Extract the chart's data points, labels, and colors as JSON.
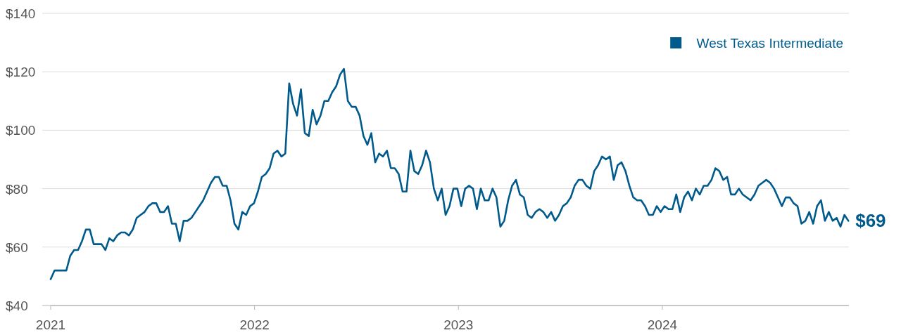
{
  "chart_data": {
    "type": "line",
    "x": [
      "2021-01-01",
      "2021-01-08",
      "2021-01-15",
      "2021-01-22",
      "2021-01-29",
      "2021-02-05",
      "2021-02-12",
      "2021-02-19",
      "2021-02-26",
      "2021-03-05",
      "2021-03-12",
      "2021-03-19",
      "2021-03-26",
      "2021-04-02",
      "2021-04-09",
      "2021-04-16",
      "2021-04-23",
      "2021-04-30",
      "2021-05-07",
      "2021-05-14",
      "2021-05-21",
      "2021-05-28",
      "2021-06-04",
      "2021-06-11",
      "2021-06-18",
      "2021-06-25",
      "2021-07-02",
      "2021-07-09",
      "2021-07-16",
      "2021-07-23",
      "2021-07-30",
      "2021-08-06",
      "2021-08-13",
      "2021-08-20",
      "2021-08-27",
      "2021-09-03",
      "2021-09-10",
      "2021-09-17",
      "2021-09-24",
      "2021-10-01",
      "2021-10-08",
      "2021-10-15",
      "2021-10-22",
      "2021-10-29",
      "2021-11-05",
      "2021-11-12",
      "2021-11-19",
      "2021-11-26",
      "2021-12-03",
      "2021-12-10",
      "2021-12-17",
      "2021-12-24",
      "2021-12-31",
      "2022-01-07",
      "2022-01-14",
      "2022-01-21",
      "2022-01-28",
      "2022-02-04",
      "2022-02-11",
      "2022-02-18",
      "2022-02-25",
      "2022-03-04",
      "2022-03-11",
      "2022-03-18",
      "2022-03-25",
      "2022-04-01",
      "2022-04-08",
      "2022-04-15",
      "2022-04-22",
      "2022-04-29",
      "2022-05-06",
      "2022-05-13",
      "2022-05-20",
      "2022-05-27",
      "2022-06-03",
      "2022-06-10",
      "2022-06-17",
      "2022-06-24",
      "2022-07-01",
      "2022-07-08",
      "2022-07-15",
      "2022-07-22",
      "2022-07-29",
      "2022-08-05",
      "2022-08-12",
      "2022-08-19",
      "2022-08-26",
      "2022-09-02",
      "2022-09-09",
      "2022-09-16",
      "2022-09-23",
      "2022-09-30",
      "2022-10-07",
      "2022-10-14",
      "2022-10-21",
      "2022-10-28",
      "2022-11-04",
      "2022-11-11",
      "2022-11-18",
      "2022-11-25",
      "2022-12-02",
      "2022-12-09",
      "2022-12-16",
      "2022-12-23",
      "2022-12-30",
      "2023-01-06",
      "2023-01-13",
      "2023-01-20",
      "2023-01-27",
      "2023-02-03",
      "2023-02-10",
      "2023-02-17",
      "2023-02-24",
      "2023-03-03",
      "2023-03-10",
      "2023-03-17",
      "2023-03-24",
      "2023-03-31",
      "2023-04-07",
      "2023-04-14",
      "2023-04-21",
      "2023-04-28",
      "2023-05-05",
      "2023-05-12",
      "2023-05-19",
      "2023-05-26",
      "2023-06-02",
      "2023-06-09",
      "2023-06-16",
      "2023-06-23",
      "2023-06-30",
      "2023-07-07",
      "2023-07-14",
      "2023-07-21",
      "2023-07-28",
      "2023-08-04",
      "2023-08-11",
      "2023-08-18",
      "2023-08-25",
      "2023-09-01",
      "2023-09-08",
      "2023-09-15",
      "2023-09-22",
      "2023-09-29",
      "2023-10-06",
      "2023-10-13",
      "2023-10-20",
      "2023-10-27",
      "2023-11-03",
      "2023-11-10",
      "2023-11-17",
      "2023-11-24",
      "2023-12-01",
      "2023-12-08",
      "2023-12-15",
      "2023-12-22",
      "2023-12-29",
      "2024-01-05",
      "2024-01-12",
      "2024-01-19",
      "2024-01-26",
      "2024-02-02",
      "2024-02-09",
      "2024-02-16",
      "2024-02-23",
      "2024-03-01",
      "2024-03-08",
      "2024-03-15",
      "2024-03-22",
      "2024-03-29",
      "2024-04-05",
      "2024-04-12",
      "2024-04-19",
      "2024-04-26",
      "2024-05-03",
      "2024-05-10",
      "2024-05-17",
      "2024-05-24",
      "2024-05-31",
      "2024-06-07",
      "2024-06-14",
      "2024-06-21",
      "2024-06-28",
      "2024-07-05",
      "2024-07-12",
      "2024-07-19",
      "2024-07-26",
      "2024-08-02",
      "2024-08-09",
      "2024-08-16",
      "2024-08-23",
      "2024-08-30",
      "2024-09-06",
      "2024-09-13",
      "2024-09-20",
      "2024-09-27",
      "2024-10-04",
      "2024-10-11",
      "2024-10-18",
      "2024-10-25",
      "2024-11-01",
      "2024-11-08",
      "2024-11-15",
      "2024-11-22",
      "2024-11-29"
    ],
    "series": [
      {
        "name": "West Texas Intermediate",
        "color": "#005a8c",
        "values": [
          49,
          52,
          52,
          52,
          52,
          57,
          59,
          59,
          62,
          66,
          66,
          61,
          61,
          61,
          59,
          63,
          62,
          64,
          65,
          65,
          64,
          66,
          70,
          71,
          72,
          74,
          75,
          75,
          72,
          72,
          74,
          68,
          68,
          62,
          69,
          69,
          70,
          72,
          74,
          76,
          79,
          82,
          84,
          84,
          81,
          81,
          76,
          68,
          66,
          72,
          71,
          74,
          75,
          79,
          84,
          85,
          87,
          92,
          93,
          91,
          92,
          116,
          109,
          105,
          114,
          99,
          98,
          107,
          102,
          105,
          110,
          110,
          113,
          115,
          119,
          121,
          110,
          108,
          108,
          105,
          98,
          95,
          99,
          89,
          92,
          91,
          93,
          87,
          87,
          85,
          79,
          79,
          93,
          86,
          85,
          88,
          93,
          89,
          80,
          76,
          80,
          71,
          74,
          80,
          80,
          74,
          80,
          81,
          80,
          73,
          80,
          76,
          76,
          80,
          77,
          67,
          69,
          76,
          81,
          83,
          78,
          77,
          71,
          70,
          72,
          73,
          72,
          70,
          72,
          69,
          71,
          74,
          75,
          77,
          81,
          83,
          83,
          81,
          80,
          86,
          88,
          91,
          90,
          91,
          83,
          88,
          89,
          86,
          81,
          77,
          76,
          76,
          74,
          71,
          71,
          74,
          72,
          74,
          73,
          73,
          78,
          72,
          77,
          79,
          76,
          80,
          78,
          81,
          81,
          83,
          87,
          86,
          83,
          84,
          78,
          78,
          80,
          78,
          77,
          76,
          78,
          81,
          82,
          83,
          82,
          80,
          77,
          74,
          77,
          77,
          75,
          74,
          68,
          69,
          72,
          68,
          74,
          76,
          69,
          72,
          69,
          70,
          67,
          71,
          69
        ]
      }
    ],
    "xlim": [
      "2021-01-01",
      "2024-11-30"
    ],
    "xticks": [
      {
        "value": "2021-01-01",
        "label": "2021"
      },
      {
        "value": "2022-01-01",
        "label": "2022"
      },
      {
        "value": "2023-01-01",
        "label": "2023"
      },
      {
        "value": "2024-01-01",
        "label": "2024"
      }
    ],
    "ylim": [
      40,
      140
    ],
    "yticks": [
      {
        "value": 40,
        "label": "$40"
      },
      {
        "value": 60,
        "label": "$60"
      },
      {
        "value": 80,
        "label": "$80"
      },
      {
        "value": 100,
        "label": "$100"
      },
      {
        "value": 120,
        "label": "$120"
      },
      {
        "value": 140,
        "label": "$140"
      }
    ],
    "grid": "y",
    "legend": "top right",
    "marker": "none",
    "line_style": "solid",
    "annotations": [
      {
        "text": "$69",
        "x": "2024-11-29",
        "y": 69
      }
    ]
  }
}
